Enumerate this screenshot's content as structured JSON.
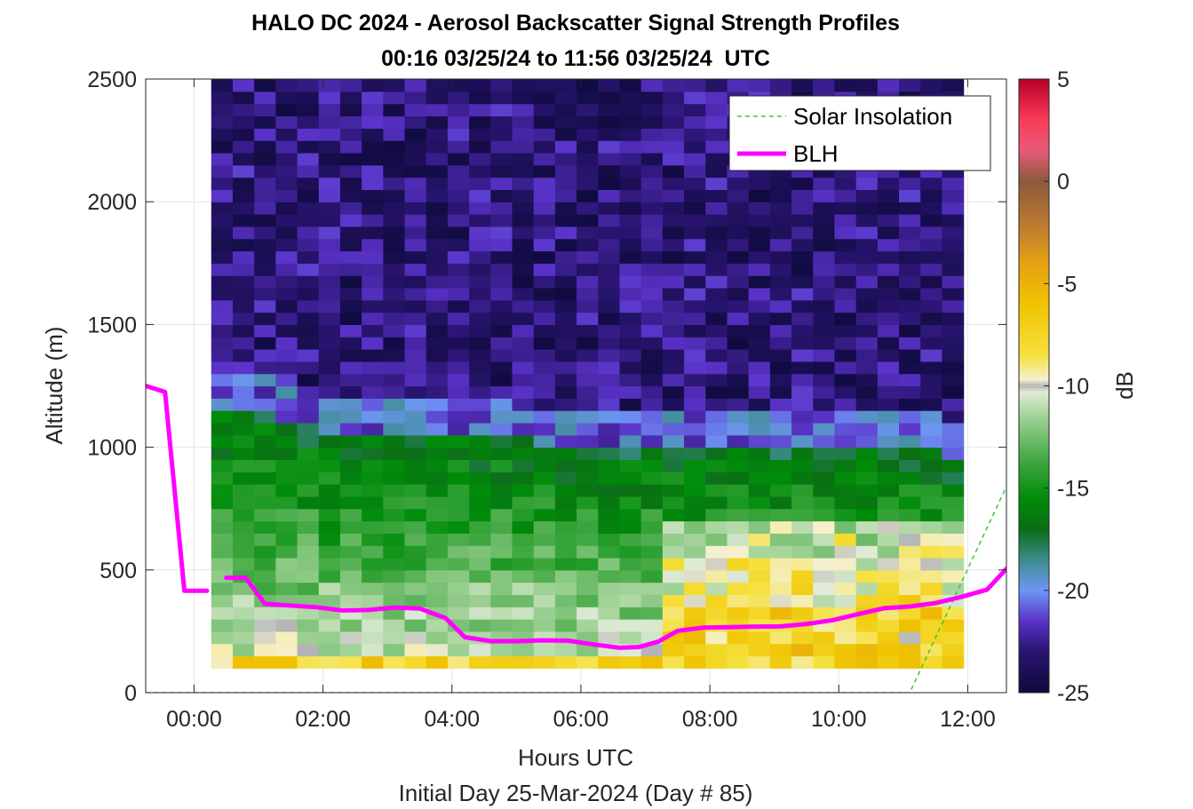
{
  "chart_data": {
    "type": "heatmap",
    "title": "HALO DC 2024 - Aerosol Backscatter Signal Strength Profiles",
    "subtitle": "00:16 03/25/24 to 11:56 03/25/24  UTC",
    "xlabel": "Hours UTC",
    "xlabel2": "Initial Day 25-Mar-2024 (Day # 85)",
    "ylabel": "Altitude (m)",
    "xlim": [
      -0.75,
      12.6
    ],
    "ylim": [
      0,
      2500
    ],
    "x_ticks": [
      0,
      2,
      4,
      6,
      8,
      10,
      12
    ],
    "x_tick_labels": [
      "00:00",
      "02:00",
      "04:00",
      "06:00",
      "08:00",
      "10:00",
      "12:00"
    ],
    "y_ticks": [
      0,
      500,
      1000,
      1500,
      2000,
      2500
    ],
    "y_tick_labels": [
      "0",
      "500",
      "1000",
      "1500",
      "2000",
      "2500"
    ],
    "grid": true,
    "legend_position": "top-right",
    "colorbar": {
      "label": "dB",
      "range": [
        -25,
        5
      ],
      "ticks": [
        5,
        0,
        -5,
        -10,
        -15,
        -20,
        -25
      ],
      "tick_labels": [
        "5",
        "0",
        "-5",
        "-10",
        "-15",
        "-20",
        "-25"
      ]
    },
    "heatmap": {
      "time_start": 0.2667,
      "time_end": 11.9333,
      "n_columns": 35,
      "altitude_start": 100,
      "altitude_end": 2500,
      "n_rows": 48,
      "layer_tops_m": [
        1150,
        1150,
        1150,
        1100,
        1100,
        1050,
        1050,
        1050,
        1050,
        1050,
        1050,
        1050,
        1050,
        1050,
        1050,
        1000,
        1000,
        1000,
        1000,
        1000,
        1000,
        1000,
        1000,
        1000,
        1000,
        1000,
        1000,
        1000,
        1000,
        1000,
        1000,
        1000,
        1000,
        1000,
        950
      ],
      "yellow_tops_m": [
        150,
        150,
        150,
        150,
        150,
        150,
        150,
        150,
        150,
        150,
        150,
        150,
        150,
        150,
        150,
        150,
        150,
        150,
        150,
        150,
        150,
        150,
        150,
        150,
        150,
        150,
        150,
        150,
        150,
        150,
        150,
        150,
        150,
        150,
        150
      ]
    },
    "series": [
      {
        "name": "Solar Insolation",
        "color": "#33cc33",
        "style": "dashed",
        "x": [
          -0.75,
          11.1,
          12.6
        ],
        "y": [
          0,
          0,
          840
        ]
      },
      {
        "name": "BLH",
        "color": "#ff00ff",
        "style": "solid",
        "segments": [
          {
            "x": [
              -0.75,
              -0.45,
              -0.15,
              0.2
            ],
            "y": [
              1250,
              1225,
              415,
              415
            ]
          },
          {
            "x": [
              0.5,
              0.8,
              1.1,
              1.5,
              1.9,
              2.3,
              2.7,
              3.1,
              3.5,
              3.9,
              4.2,
              4.6,
              5.0,
              5.4,
              5.8,
              6.2,
              6.6,
              6.9,
              7.2,
              7.5,
              7.9,
              8.3,
              8.7,
              9.1,
              9.5,
              9.9,
              10.3,
              10.7,
              11.1,
              11.5,
              11.9,
              12.3,
              12.6
            ],
            "y": [
              468,
              468,
              362,
              355,
              348,
              335,
              337,
              347,
              343,
              304,
              226,
              210,
              210,
              213,
              212,
              196,
              183,
              186,
              208,
              252,
              265,
              267,
              269,
              270,
              280,
              295,
              320,
              344,
              351,
              365,
              390,
              420,
              505
            ]
          }
        ]
      }
    ]
  }
}
